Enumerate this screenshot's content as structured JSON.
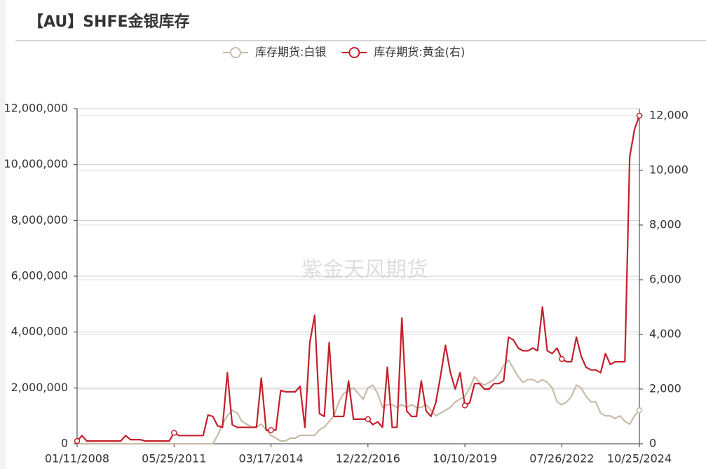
{
  "chart_data": {
    "type": "line",
    "title": "【AU】SHFE金银库存",
    "watermark": "紫金天风期货",
    "categories": [
      "01/11/2008",
      null,
      null,
      null,
      null,
      null,
      null,
      null,
      null,
      null,
      null,
      null,
      null,
      null,
      null,
      null,
      null,
      null,
      null,
      null,
      "05/25/2011",
      null,
      null,
      null,
      null,
      null,
      null,
      null,
      null,
      null,
      null,
      null,
      null,
      null,
      null,
      null,
      null,
      null,
      null,
      null,
      "03/17/2014",
      null,
      null,
      null,
      null,
      null,
      null,
      null,
      null,
      null,
      null,
      null,
      null,
      null,
      null,
      null,
      null,
      null,
      null,
      null,
      "12/22/2016",
      null,
      null,
      null,
      null,
      null,
      null,
      null,
      null,
      null,
      null,
      null,
      null,
      null,
      null,
      null,
      null,
      null,
      null,
      null,
      "10/10/2019",
      null,
      null,
      null,
      null,
      null,
      null,
      null,
      null,
      null,
      null,
      null,
      null,
      null,
      null,
      null,
      null,
      null,
      null,
      null,
      "07/26/2022",
      null,
      null,
      null,
      null,
      null,
      null,
      null,
      null,
      null,
      null,
      null,
      null,
      null,
      null,
      null,
      "10/25/2024"
    ],
    "series": [
      {
        "name": "库存期货:白银",
        "color": "#c9bba8",
        "axis": "y",
        "values": [
          0,
          0,
          0,
          0,
          0,
          0,
          0,
          0,
          0,
          0,
          0,
          0,
          0,
          0,
          0,
          0,
          0,
          0,
          0,
          0,
          0,
          0,
          0,
          0,
          0,
          0,
          0,
          0,
          0,
          300000,
          700000,
          1000000,
          1200000,
          1100000,
          800000,
          700000,
          600000,
          600000,
          700000,
          500000,
          300000,
          200000,
          100000,
          100000,
          200000,
          200000,
          300000,
          300000,
          300000,
          300000,
          500000,
          600000,
          800000,
          1000000,
          1500000,
          1800000,
          1900000,
          2000000,
          1800000,
          1600000,
          2000000,
          2100000,
          1800000,
          1300000,
          1400000,
          1400000,
          1300000,
          1400000,
          1300000,
          1400000,
          1300000,
          1300000,
          1400000,
          1200000,
          1000000,
          1100000,
          1200000,
          1300000,
          1500000,
          1600000,
          1700000,
          2000000,
          2400000,
          2200000,
          2100000,
          2200000,
          2300000,
          2500000,
          2800000,
          3000000,
          2700000,
          2400000,
          2200000,
          2300000,
          2300000,
          2200000,
          2300000,
          2200000,
          2000000,
          1500000,
          1400000,
          1500000,
          1700000,
          2100000,
          2000000,
          1700000,
          1500000,
          1500000,
          1100000,
          1000000,
          1000000,
          900000,
          1000000,
          800000,
          700000,
          1000000,
          1200000
        ]
      },
      {
        "name": "库存期货:黄金(右)",
        "color": "#c3202c",
        "axis": "y2",
        "values": [
          100,
          300,
          100,
          100,
          100,
          100,
          100,
          100,
          100,
          100,
          300,
          150,
          150,
          150,
          100,
          100,
          100,
          100,
          100,
          100,
          400,
          300,
          300,
          300,
          300,
          300,
          300,
          1050,
          1000,
          650,
          600,
          2600,
          700,
          600,
          600,
          600,
          600,
          600,
          2400,
          500,
          500,
          500,
          1950,
          1900,
          1900,
          1900,
          2100,
          600,
          3700,
          4700,
          1100,
          1000,
          3700,
          1000,
          1000,
          1000,
          2300,
          900,
          900,
          900,
          900,
          700,
          800,
          600,
          2800,
          600,
          600,
          4600,
          1200,
          1000,
          1000,
          2300,
          1200,
          1000,
          1500,
          2500,
          3600,
          2600,
          2000,
          2600,
          1400,
          1500,
          2200,
          2200,
          2000,
          2000,
          2200,
          2200,
          2300,
          3900,
          3800,
          3500,
          3400,
          3400,
          3500,
          3400,
          5000,
          3400,
          3300,
          3500,
          3100,
          3000,
          3000,
          3900,
          3200,
          2800,
          2700,
          2700,
          2600,
          3300,
          2900,
          3000,
          3000,
          3000,
          10500,
          11500,
          12000
        ]
      }
    ],
    "ylim": [
      0,
      12000000
    ],
    "yticks": [
      0,
      {
        "value": 2000000,
        "label": "2,000,000"
      },
      {
        "value": 4000000,
        "label": "4,000,000"
      },
      {
        "value": 6000000,
        "label": "6,000,000"
      },
      {
        "value": 8000000,
        "label": "8,000,000"
      },
      {
        "value": 10000000,
        "label": "10,000,000"
      },
      {
        "value": 12000000,
        "label": "12,000,000"
      }
    ],
    "y2lim": [
      0,
      12256
    ],
    "y2ticks": [
      0,
      {
        "value": 2000,
        "label": "2,000"
      },
      {
        "value": 4000,
        "label": "4,000"
      },
      {
        "value": 6000,
        "label": "6,000"
      },
      {
        "value": 8000,
        "label": "8,000"
      },
      {
        "value": 10000,
        "label": "10,000"
      },
      {
        "value": 12000,
        "label": "12,000"
      }
    ],
    "grid": true,
    "legend": "top"
  }
}
